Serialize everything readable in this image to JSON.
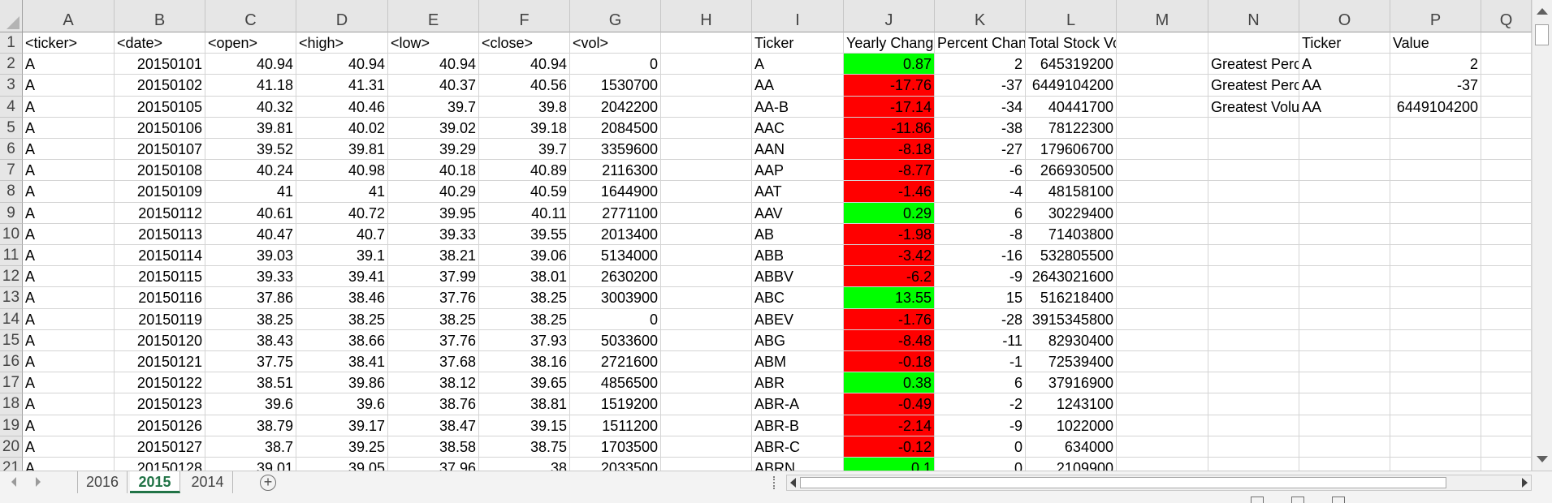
{
  "columns": [
    "A",
    "B",
    "C",
    "D",
    "E",
    "F",
    "G",
    "H",
    "I",
    "J",
    "K",
    "L",
    "M",
    "N",
    "O",
    "P",
    "Q"
  ],
  "rows": [
    {
      "num": "1",
      "cells": [
        "<ticker>",
        "<date>",
        "<open>",
        "<high>",
        "<low>",
        "<close>",
        "<vol>",
        "",
        "Ticker",
        "Yearly Chang",
        "Percent Chan",
        "Total Stock Volume",
        "",
        "",
        "Ticker",
        "Value",
        ""
      ]
    },
    {
      "num": "2",
      "cells": [
        "A",
        "20150101",
        "40.94",
        "40.94",
        "40.94",
        "40.94",
        "0",
        "",
        "A",
        "0.87",
        "2",
        "645319200",
        "",
        "Greatest Perc",
        "A",
        "2",
        ""
      ]
    },
    {
      "num": "3",
      "cells": [
        "A",
        "20150102",
        "41.18",
        "41.31",
        "40.37",
        "40.56",
        "1530700",
        "",
        "AA",
        "-17.76",
        "-37",
        "6449104200",
        "",
        "Greatest Perc",
        "AA",
        "-37",
        ""
      ]
    },
    {
      "num": "4",
      "cells": [
        "A",
        "20150105",
        "40.32",
        "40.46",
        "39.7",
        "39.8",
        "2042200",
        "",
        "AA-B",
        "-17.14",
        "-34",
        "40441700",
        "",
        "Greatest Volu",
        "AA",
        "6449104200",
        ""
      ]
    },
    {
      "num": "5",
      "cells": [
        "A",
        "20150106",
        "39.81",
        "40.02",
        "39.02",
        "39.18",
        "2084500",
        "",
        "AAC",
        "-11.86",
        "-38",
        "78122300",
        "",
        "",
        "",
        "",
        ""
      ]
    },
    {
      "num": "6",
      "cells": [
        "A",
        "20150107",
        "39.52",
        "39.81",
        "39.29",
        "39.7",
        "3359600",
        "",
        "AAN",
        "-8.18",
        "-27",
        "179606700",
        "",
        "",
        "",
        "",
        ""
      ]
    },
    {
      "num": "7",
      "cells": [
        "A",
        "20150108",
        "40.24",
        "40.98",
        "40.18",
        "40.89",
        "2116300",
        "",
        "AAP",
        "-8.77",
        "-6",
        "266930500",
        "",
        "",
        "",
        "",
        ""
      ]
    },
    {
      "num": "8",
      "cells": [
        "A",
        "20150109",
        "41",
        "41",
        "40.29",
        "40.59",
        "1644900",
        "",
        "AAT",
        "-1.46",
        "-4",
        "48158100",
        "",
        "",
        "",
        "",
        ""
      ]
    },
    {
      "num": "9",
      "cells": [
        "A",
        "20150112",
        "40.61",
        "40.72",
        "39.95",
        "40.11",
        "2771100",
        "",
        "AAV",
        "0.29",
        "6",
        "30229400",
        "",
        "",
        "",
        "",
        ""
      ]
    },
    {
      "num": "10",
      "cells": [
        "A",
        "20150113",
        "40.47",
        "40.7",
        "39.33",
        "39.55",
        "2013400",
        "",
        "AB",
        "-1.98",
        "-8",
        "71403800",
        "",
        "",
        "",
        "",
        ""
      ]
    },
    {
      "num": "11",
      "cells": [
        "A",
        "20150114",
        "39.03",
        "39.1",
        "38.21",
        "39.06",
        "5134000",
        "",
        "ABB",
        "-3.42",
        "-16",
        "532805500",
        "",
        "",
        "",
        "",
        ""
      ]
    },
    {
      "num": "12",
      "cells": [
        "A",
        "20150115",
        "39.33",
        "39.41",
        "37.99",
        "38.01",
        "2630200",
        "",
        "ABBV",
        "-6.2",
        "-9",
        "2643021600",
        "",
        "",
        "",
        "",
        ""
      ]
    },
    {
      "num": "13",
      "cells": [
        "A",
        "20150116",
        "37.86",
        "38.46",
        "37.76",
        "38.25",
        "3003900",
        "",
        "ABC",
        "13.55",
        "15",
        "516218400",
        "",
        "",
        "",
        "",
        ""
      ]
    },
    {
      "num": "14",
      "cells": [
        "A",
        "20150119",
        "38.25",
        "38.25",
        "38.25",
        "38.25",
        "0",
        "",
        "ABEV",
        "-1.76",
        "-28",
        "3915345800",
        "",
        "",
        "",
        "",
        ""
      ]
    },
    {
      "num": "15",
      "cells": [
        "A",
        "20150120",
        "38.43",
        "38.66",
        "37.76",
        "37.93",
        "5033600",
        "",
        "ABG",
        "-8.48",
        "-11",
        "82930400",
        "",
        "",
        "",
        "",
        ""
      ]
    },
    {
      "num": "16",
      "cells": [
        "A",
        "20150121",
        "37.75",
        "38.41",
        "37.68",
        "38.16",
        "2721600",
        "",
        "ABM",
        "-0.18",
        "-1",
        "72539400",
        "",
        "",
        "",
        "",
        ""
      ]
    },
    {
      "num": "17",
      "cells": [
        "A",
        "20150122",
        "38.51",
        "39.86",
        "38.12",
        "39.65",
        "4856500",
        "",
        "ABR",
        "0.38",
        "6",
        "37916900",
        "",
        "",
        "",
        "",
        ""
      ]
    },
    {
      "num": "18",
      "cells": [
        "A",
        "20150123",
        "39.6",
        "39.6",
        "38.76",
        "38.81",
        "1519200",
        "",
        "ABR-A",
        "-0.49",
        "-2",
        "1243100",
        "",
        "",
        "",
        "",
        ""
      ]
    },
    {
      "num": "19",
      "cells": [
        "A",
        "20150126",
        "38.79",
        "39.17",
        "38.47",
        "39.15",
        "1511200",
        "",
        "ABR-B",
        "-2.14",
        "-9",
        "1022000",
        "",
        "",
        "",
        "",
        ""
      ]
    },
    {
      "num": "20",
      "cells": [
        "A",
        "20150127",
        "38.7",
        "39.25",
        "38.58",
        "38.75",
        "1703500",
        "",
        "ABR-C",
        "-0.12",
        "0",
        "634000",
        "",
        "",
        "",
        "",
        ""
      ]
    },
    {
      "num": "21",
      "cells": [
        "A",
        "20150128",
        "39.01",
        "39.05",
        "37.96",
        "38",
        "2033500",
        "",
        "ABRN",
        "0.1",
        "0",
        "2109900",
        "",
        "",
        "",
        "",
        ""
      ]
    }
  ],
  "sheet_tabs": [
    {
      "label": "2016",
      "active": false
    },
    {
      "label": "2015",
      "active": true
    },
    {
      "label": "2014",
      "active": false
    }
  ],
  "add_sheet_label": "+",
  "colors": {
    "positive": "#00ff00",
    "negative": "#ff0000",
    "active_tab": "#217346"
  }
}
